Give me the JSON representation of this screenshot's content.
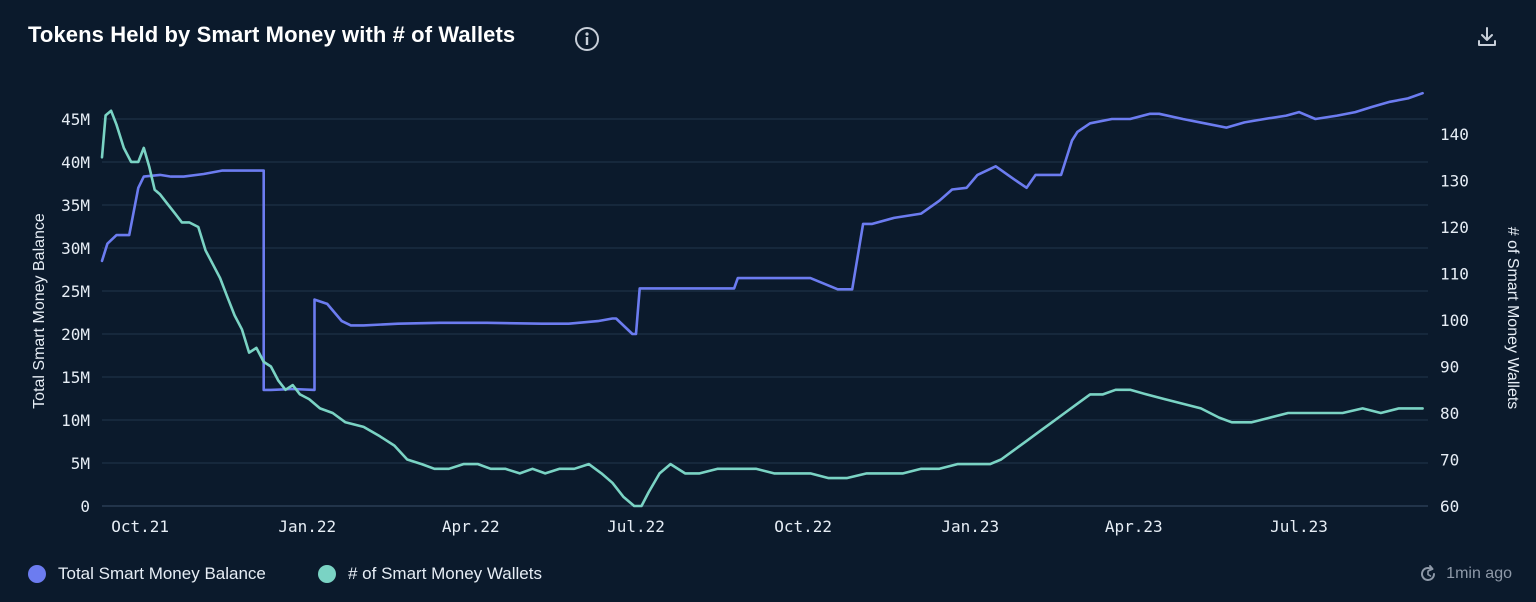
{
  "header": {
    "title": "Tokens Held by Smart Money with # of Wallets"
  },
  "footer": {
    "updated": "1min ago"
  },
  "colors": {
    "background": "#0b1a2c",
    "balance": "#6c7cf0",
    "wallets": "#7ad3c4",
    "grid": "#22364d"
  },
  "icons": [
    "info-icon",
    "download-icon",
    "refresh-icon"
  ],
  "chart_data": {
    "type": "line",
    "title": "Tokens Held by Smart Money with # of Wallets",
    "xlabel": "",
    "ylabel": "Total Smart Money Balance",
    "y2label": "# of Smart Money Wallets",
    "x_tick_labels": [
      "Oct.21",
      "Jan.22",
      "Apr.22",
      "Jul.22",
      "Oct.22",
      "Jan.23",
      "Apr.23",
      "Jul.23"
    ],
    "y_tick_labels": [
      "0",
      "5M",
      "10M",
      "15M",
      "20M",
      "25M",
      "30M",
      "35M",
      "40M",
      "45M"
    ],
    "y2_tick_labels": [
      "60",
      "70",
      "80",
      "90",
      "100",
      "110",
      "120",
      "130",
      "140"
    ],
    "ylim": [
      0,
      45000000
    ],
    "y2lim": [
      60,
      140
    ],
    "xlim": [
      "2021-09-10",
      "2023-09-10"
    ],
    "grid": true,
    "legend_position": "bottom-left",
    "series": [
      {
        "name": "Total Smart Money Balance",
        "axis": "left",
        "color": "#6c7cf0",
        "x": [
          "2021-09-10",
          "2021-09-13",
          "2021-09-18",
          "2021-09-25",
          "2021-09-30",
          "2021-10-03",
          "2021-10-12",
          "2021-10-18",
          "2021-10-25",
          "2021-11-05",
          "2021-11-15",
          "2021-11-22",
          "2021-11-30",
          "2021-12-08",
          "2021-12-08",
          "2021-12-12",
          "2021-12-24",
          "2022-01-05",
          "2022-01-05",
          "2022-01-12",
          "2022-01-20",
          "2022-01-25",
          "2022-02-01",
          "2022-02-20",
          "2022-03-15",
          "2022-04-10",
          "2022-05-10",
          "2022-05-25",
          "2022-06-10",
          "2022-06-18",
          "2022-06-20",
          "2022-06-29",
          "2022-07-01",
          "2022-07-03",
          "2022-07-20",
          "2022-08-10",
          "2022-08-24",
          "2022-08-26",
          "2022-09-20",
          "2022-10-05",
          "2022-10-20",
          "2022-10-28",
          "2022-11-03",
          "2022-11-08",
          "2022-11-20",
          "2022-12-05",
          "2022-12-15",
          "2022-12-22",
          "2022-12-30",
          "2023-01-05",
          "2023-01-15",
          "2023-01-25",
          "2023-02-01",
          "2023-02-06",
          "2023-02-10",
          "2023-02-20",
          "2023-02-26",
          "2023-03-01",
          "2023-03-08",
          "2023-03-20",
          "2023-03-30",
          "2023-04-10",
          "2023-04-15",
          "2023-04-28",
          "2023-05-10",
          "2023-05-22",
          "2023-06-01",
          "2023-06-12",
          "2023-06-24",
          "2023-07-01",
          "2023-07-10",
          "2023-07-22",
          "2023-08-01",
          "2023-08-10",
          "2023-08-20",
          "2023-08-30",
          "2023-09-07"
        ],
        "values": [
          28500000,
          30500000,
          31500000,
          31500000,
          37000000,
          38300000,
          38500000,
          38300000,
          38300000,
          38600000,
          39000000,
          39000000,
          39000000,
          39000000,
          13500000,
          13500000,
          13600000,
          13500000,
          24000000,
          23500000,
          21500000,
          21000000,
          21000000,
          21200000,
          21300000,
          21300000,
          21200000,
          21200000,
          21500000,
          21800000,
          21800000,
          20000000,
          20000000,
          25300000,
          25300000,
          25300000,
          25300000,
          26500000,
          26500000,
          26500000,
          25200000,
          25200000,
          32800000,
          32800000,
          33500000,
          34000000,
          35500000,
          36800000,
          37000000,
          38500000,
          39500000,
          38000000,
          37000000,
          38500000,
          38500000,
          38500000,
          42500000,
          43500000,
          44500000,
          45000000,
          45000000,
          45600000,
          45600000,
          45000000,
          44500000,
          44000000,
          44600000,
          45000000,
          45400000,
          45800000,
          45000000,
          45400000,
          45800000,
          46400000,
          47000000,
          47400000,
          48000000
        ]
      },
      {
        "name": "# of Smart Money Wallets",
        "axis": "right",
        "color": "#7ad3c4",
        "x": [
          "2021-09-10",
          "2021-09-12",
          "2021-09-15",
          "2021-09-18",
          "2021-09-22",
          "2021-09-26",
          "2021-09-30",
          "2021-10-03",
          "2021-10-06",
          "2021-10-09",
          "2021-10-12",
          "2021-10-16",
          "2021-10-20",
          "2021-10-24",
          "2021-10-28",
          "2021-11-02",
          "2021-11-06",
          "2021-11-10",
          "2021-11-14",
          "2021-11-18",
          "2021-11-22",
          "2021-11-26",
          "2021-11-30",
          "2021-12-04",
          "2021-12-08",
          "2021-12-12",
          "2021-12-16",
          "2021-12-20",
          "2021-12-24",
          "2021-12-28",
          "2022-01-02",
          "2022-01-08",
          "2022-01-15",
          "2022-01-22",
          "2022-02-01",
          "2022-02-10",
          "2022-02-18",
          "2022-02-25",
          "2022-03-05",
          "2022-03-12",
          "2022-03-20",
          "2022-03-28",
          "2022-04-05",
          "2022-04-12",
          "2022-04-20",
          "2022-04-28",
          "2022-05-05",
          "2022-05-12",
          "2022-05-20",
          "2022-05-28",
          "2022-06-05",
          "2022-06-12",
          "2022-06-18",
          "2022-06-24",
          "2022-06-30",
          "2022-07-04",
          "2022-07-08",
          "2022-07-14",
          "2022-07-20",
          "2022-07-28",
          "2022-08-05",
          "2022-08-15",
          "2022-08-25",
          "2022-09-05",
          "2022-09-15",
          "2022-09-25",
          "2022-10-05",
          "2022-10-15",
          "2022-10-25",
          "2022-11-05",
          "2022-11-15",
          "2022-11-25",
          "2022-12-05",
          "2022-12-15",
          "2022-12-25",
          "2023-01-05",
          "2023-01-12",
          "2023-01-18",
          "2023-01-25",
          "2023-02-01",
          "2023-02-08",
          "2023-02-15",
          "2023-02-22",
          "2023-03-01",
          "2023-03-08",
          "2023-03-15",
          "2023-03-22",
          "2023-03-30",
          "2023-04-08",
          "2023-04-18",
          "2023-04-28",
          "2023-05-08",
          "2023-05-18",
          "2023-05-25",
          "2023-06-05",
          "2023-06-15",
          "2023-06-25",
          "2023-07-05",
          "2023-07-15",
          "2023-07-25",
          "2023-08-05",
          "2023-08-15",
          "2023-08-25",
          "2023-09-07"
        ],
        "values": [
          135,
          144,
          145,
          142,
          137,
          134,
          134,
          137,
          133,
          128,
          127,
          125,
          123,
          121,
          121,
          120,
          115,
          112,
          109,
          105,
          101,
          98,
          93,
          94,
          91,
          90,
          87,
          85,
          86,
          84,
          83,
          81,
          80,
          78,
          77,
          75,
          73,
          70,
          69,
          68,
          68,
          69,
          69,
          68,
          68,
          67,
          68,
          67,
          68,
          68,
          69,
          67,
          65,
          62,
          60,
          60,
          63,
          67,
          69,
          67,
          67,
          68,
          68,
          68,
          67,
          67,
          67,
          66,
          66,
          67,
          67,
          67,
          68,
          68,
          69,
          69,
          69,
          70,
          72,
          74,
          76,
          78,
          80,
          82,
          84,
          84,
          85,
          85,
          84,
          83,
          82,
          81,
          79,
          78,
          78,
          79,
          80,
          80,
          80,
          80,
          81,
          80,
          81,
          81
        ]
      }
    ]
  },
  "legend": {
    "items": [
      {
        "label": "Total Smart Money Balance",
        "color": "#6c7cf0"
      },
      {
        "label": "# of Smart Money Wallets",
        "color": "#7ad3c4"
      }
    ]
  }
}
